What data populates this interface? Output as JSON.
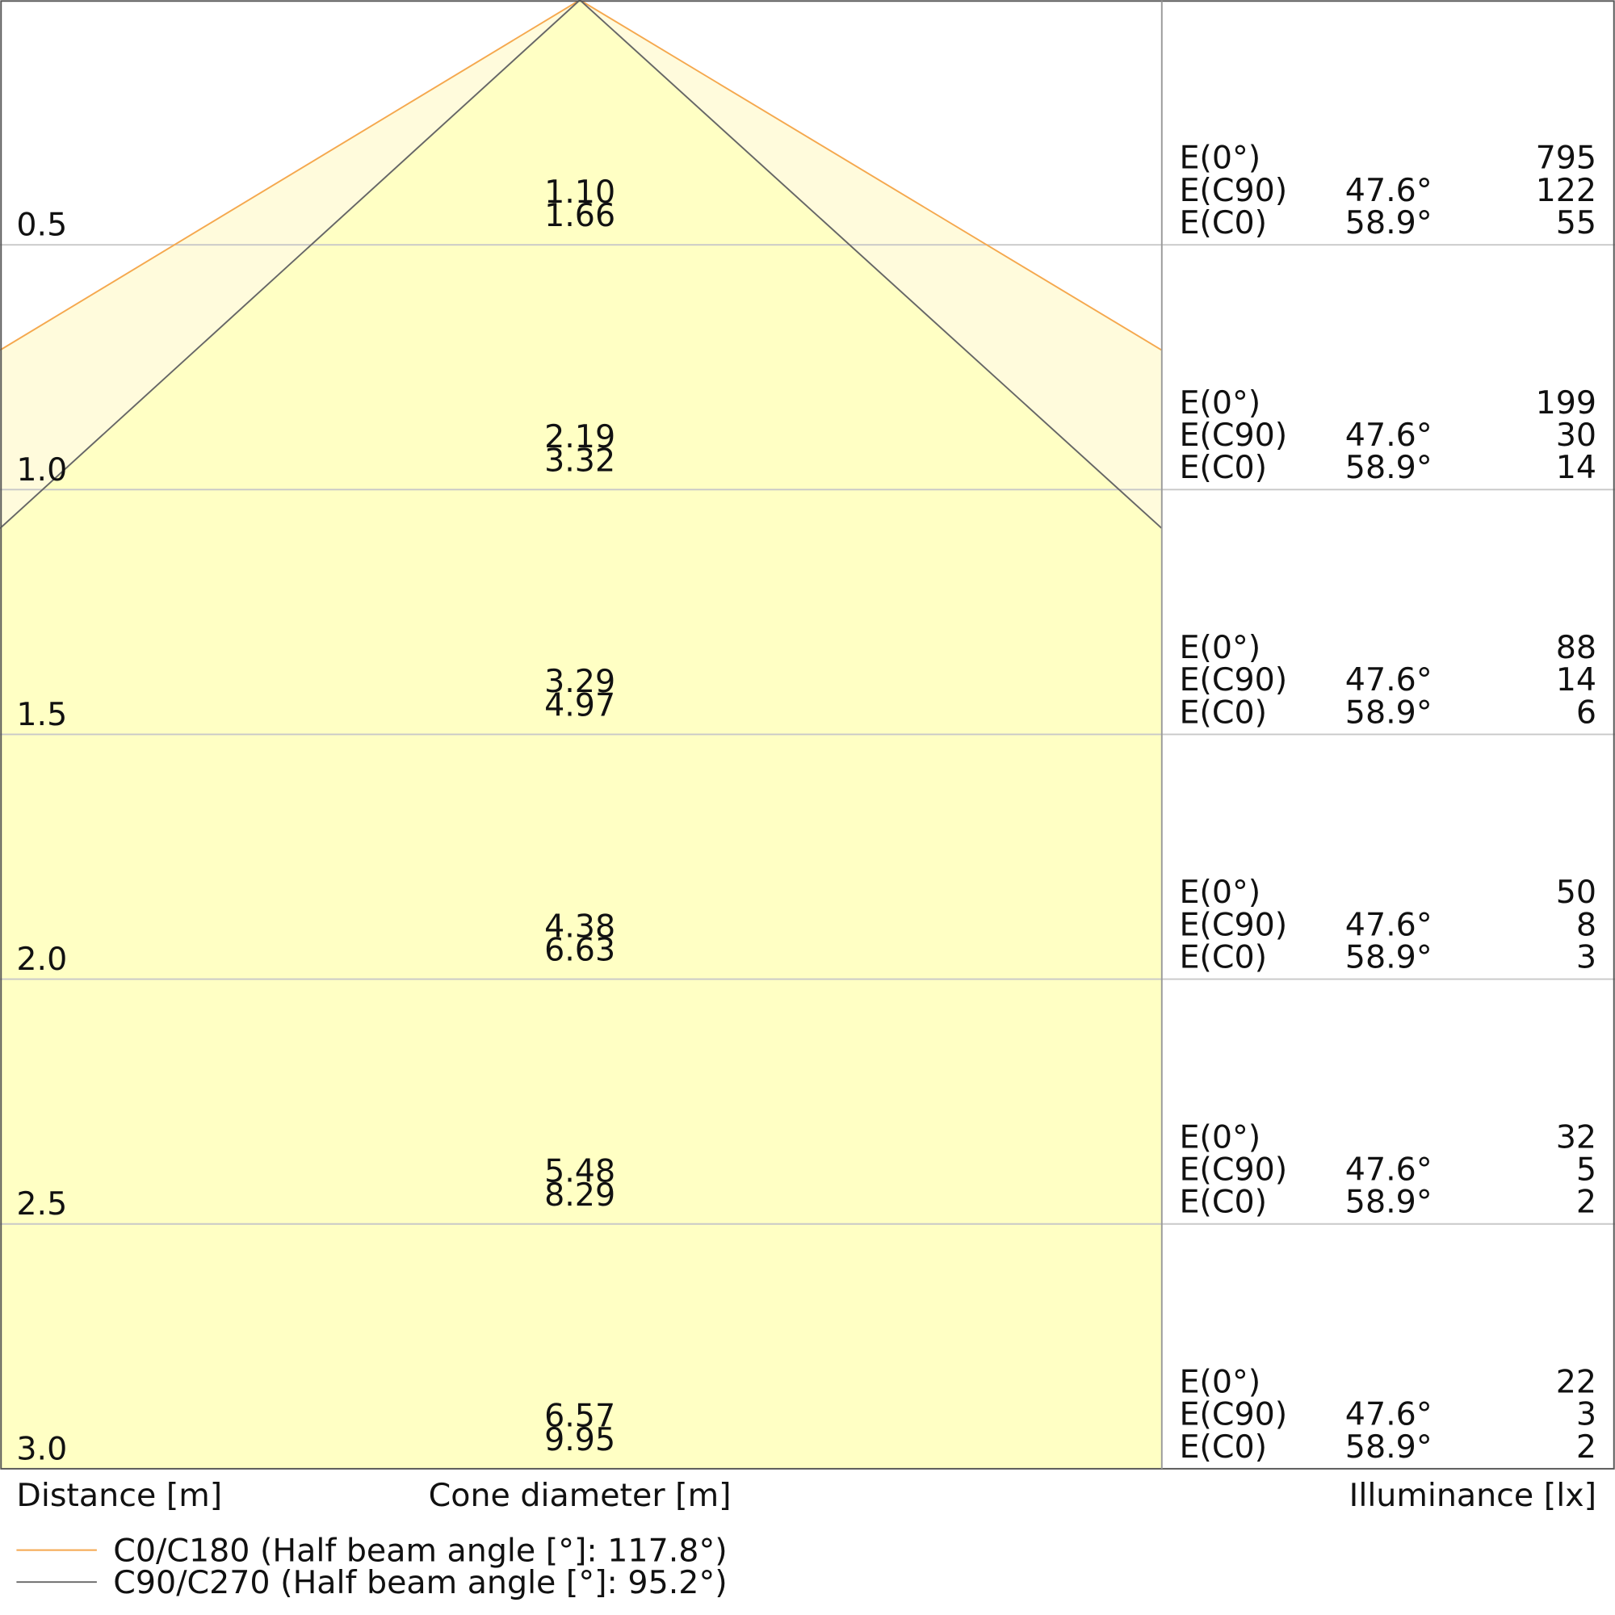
{
  "rows": [
    {
      "distance": "0.5",
      "cone": [
        "1.10",
        "1.66"
      ],
      "illuminance": [
        {
          "label": "E(0°)",
          "value": "795"
        },
        {
          "label": "E(C90)",
          "angle": "47.6°",
          "value": "122"
        },
        {
          "label": "E(C0)",
          "angle": "58.9°",
          "value": "55"
        }
      ]
    },
    {
      "distance": "1.0",
      "cone": [
        "2.19",
        "3.32"
      ],
      "illuminance": [
        {
          "label": "E(0°)",
          "value": "199"
        },
        {
          "label": "E(C90)",
          "angle": "47.6°",
          "value": "30"
        },
        {
          "label": "E(C0)",
          "angle": "58.9°",
          "value": "14"
        }
      ]
    },
    {
      "distance": "1.5",
      "cone": [
        "3.29",
        "4.97"
      ],
      "illuminance": [
        {
          "label": "E(0°)",
          "value": "88"
        },
        {
          "label": "E(C90)",
          "angle": "47.6°",
          "value": "14"
        },
        {
          "label": "E(C0)",
          "angle": "58.9°",
          "value": "6"
        }
      ]
    },
    {
      "distance": "2.0",
      "cone": [
        "4.38",
        "6.63"
      ],
      "illuminance": [
        {
          "label": "E(0°)",
          "value": "50"
        },
        {
          "label": "E(C90)",
          "angle": "47.6°",
          "value": "8"
        },
        {
          "label": "E(C0)",
          "angle": "58.9°",
          "value": "3"
        }
      ]
    },
    {
      "distance": "2.5",
      "cone": [
        "5.48",
        "8.29"
      ],
      "illuminance": [
        {
          "label": "E(0°)",
          "value": "32"
        },
        {
          "label": "E(C90)",
          "angle": "47.6°",
          "value": "5"
        },
        {
          "label": "E(C0)",
          "angle": "58.9°",
          "value": "2"
        }
      ]
    },
    {
      "distance": "3.0",
      "cone": [
        "6.57",
        "9.95"
      ],
      "illuminance": [
        {
          "label": "E(0°)",
          "value": "22"
        },
        {
          "label": "E(C90)",
          "angle": "47.6°",
          "value": "3"
        },
        {
          "label": "E(C0)",
          "angle": "58.9°",
          "value": "2"
        }
      ]
    }
  ],
  "axis_labels": {
    "distance": "Distance [m]",
    "cone": "Cone diameter [m]",
    "illuminance": "Illuminance [lx]"
  },
  "legend": [
    {
      "name": "C0/C180 (Half beam angle [°]: 117.8°)",
      "color": "#f5a84e"
    },
    {
      "name": "C90/C270 (Half beam angle [°]: 95.2°)",
      "color": "#666666"
    }
  ]
}
